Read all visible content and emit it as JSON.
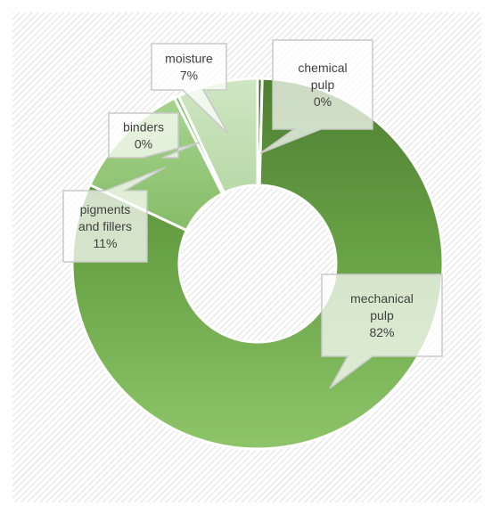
{
  "chart_data": {
    "type": "pie",
    "variant": "doughnut",
    "title": "",
    "legend": "none",
    "series": [
      {
        "values": [
          0,
          82,
          11,
          0,
          7
        ],
        "categories": [
          "chemical pulp",
          "mechanical pulp",
          "pigments and fillers",
          "binders",
          "moisture"
        ]
      }
    ],
    "slices": [
      {
        "label_lines": [
          "chemical",
          "pulp"
        ],
        "percent_text": "0%",
        "value": 0.4,
        "color": "#4a7a2c"
      },
      {
        "label_lines": [
          "mechanical",
          "pulp"
        ],
        "percent_text": "82%",
        "value": 81.6,
        "color": "#6aa447"
      },
      {
        "label_lines": [
          "pigments",
          "and fillers"
        ],
        "percent_text": "11%",
        "value": 10.6,
        "color": "#94c97a"
      },
      {
        "label_lines": [
          "binders"
        ],
        "percent_text": "0%",
        "value": 0.4,
        "color": "#9fcf88"
      },
      {
        "label_lines": [
          "moisture"
        ],
        "percent_text": "7%",
        "value": 7.0,
        "color": "#c3dfb6"
      }
    ],
    "background": "diagonal-hatch"
  }
}
